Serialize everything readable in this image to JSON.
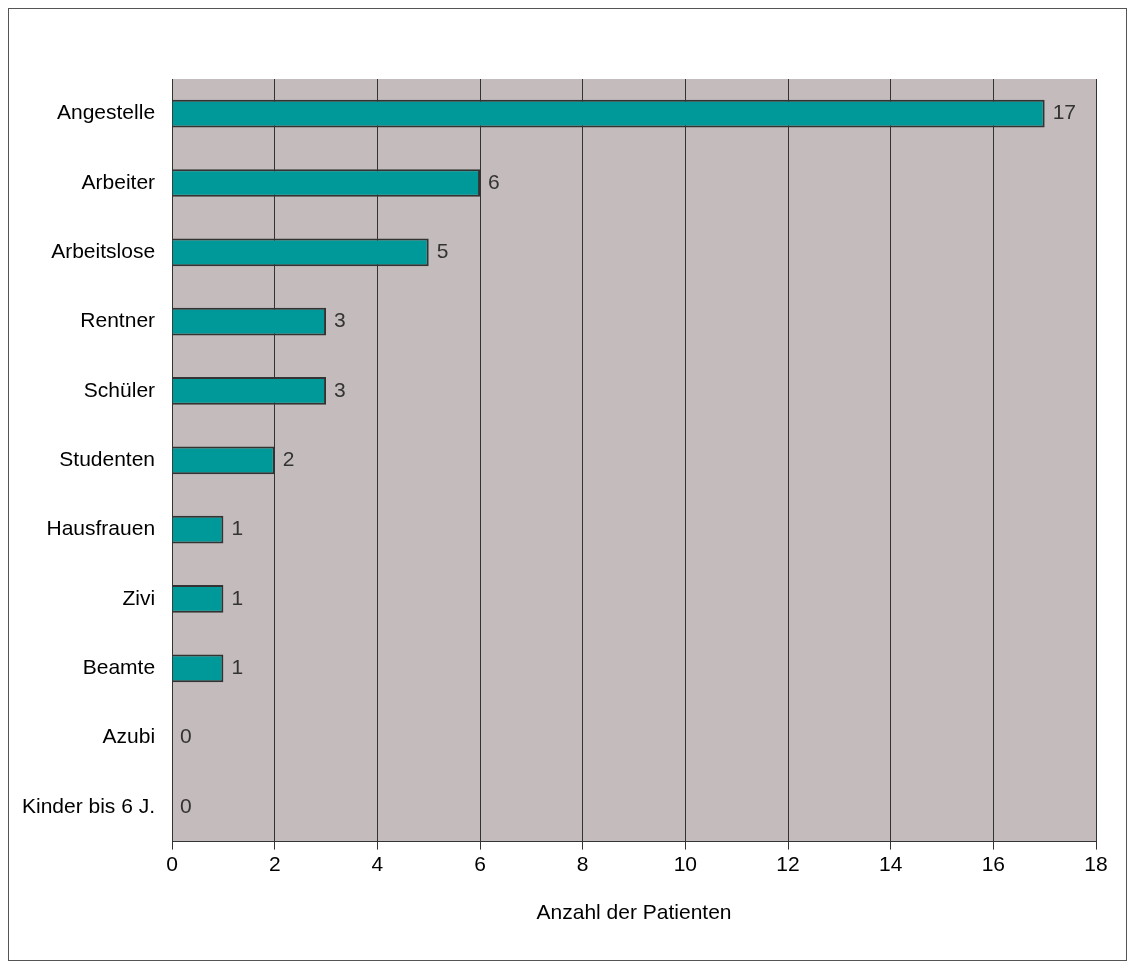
{
  "chart_data": {
    "type": "bar",
    "orientation": "horizontal",
    "xlabel": "Anzahl der Patienten",
    "categories": [
      "Angestelle",
      "Arbeiter",
      "Arbeitslose",
      "Rentner",
      "Schüler",
      "Studenten",
      "Hausfrauen",
      "Zivi",
      "Beamte",
      "Azubi",
      "Kinder bis 6 J."
    ],
    "values": [
      17,
      6,
      5,
      3,
      3,
      2,
      1,
      1,
      1,
      0,
      0
    ],
    "color": "#009999",
    "xlim": [
      0,
      18
    ],
    "xticks": [
      0,
      2,
      4,
      6,
      8,
      10,
      12,
      14,
      16,
      18
    ],
    "grid": "x",
    "data_labels": true,
    "legend": false
  }
}
